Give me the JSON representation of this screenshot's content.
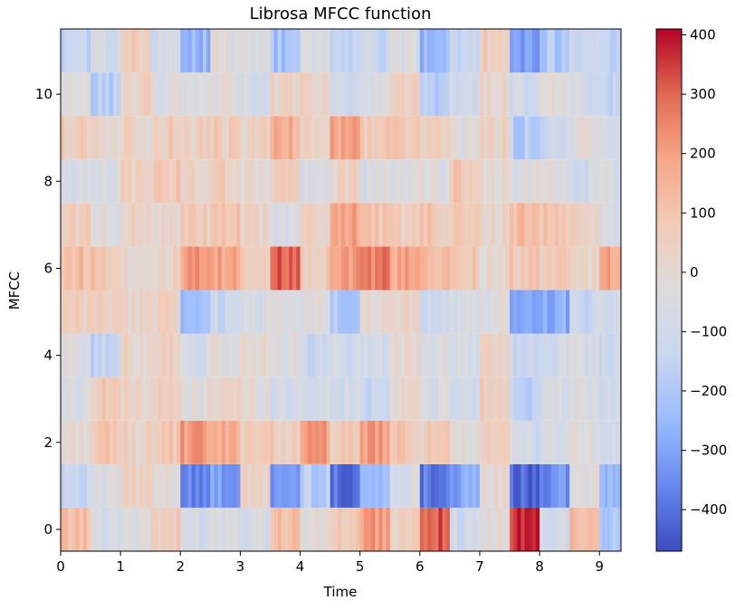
{
  "chart_data": {
    "type": "heatmap",
    "title": "Librosa MFCC function",
    "xlabel": "Time",
    "ylabel": "MFCC",
    "xlim": [
      0,
      9.36
    ],
    "ylim": [
      -0.5,
      11.5
    ],
    "x_ticks": [
      0,
      1,
      2,
      3,
      4,
      5,
      6,
      7,
      8,
      9
    ],
    "y_ticks": [
      0,
      2,
      4,
      6,
      8,
      10
    ],
    "colorbar": {
      "range": [
        -470,
        410
      ],
      "ticks": [
        400,
        300,
        200,
        100,
        0,
        -100,
        -200,
        -300,
        -400
      ],
      "tick_labels": [
        "400",
        "300",
        "200",
        "100",
        "0",
        "−100",
        "−200",
        "−300",
        "−400"
      ],
      "colormap": "coolwarm",
      "colormap_stops": [
        "#3b4cc0",
        "#6788ee",
        "#9abbff",
        "#c9d7f0",
        "#dddcdc",
        "#f2cbb7",
        "#f7a889",
        "#e26952",
        "#b40426"
      ]
    },
    "time_segments": [
      0,
      0.5,
      1.0,
      1.5,
      2.0,
      2.5,
      3.0,
      3.5,
      4.0,
      4.5,
      5.0,
      5.5,
      6.0,
      6.5,
      7.0,
      7.5,
      8.0,
      8.5,
      9.0,
      9.36
    ],
    "coefficients": [
      {
        "index": 0,
        "values": [
          120,
          -60,
          -40,
          60,
          -80,
          -40,
          -60,
          120,
          -30,
          80,
          200,
          40,
          320,
          -100,
          -20,
          360,
          -80,
          140,
          -200
        ]
      },
      {
        "index": 1,
        "values": [
          -120,
          -60,
          40,
          -20,
          -350,
          -320,
          20,
          -320,
          -180,
          -400,
          -250,
          -60,
          -380,
          -300,
          0,
          -420,
          -350,
          -30,
          -250
        ]
      },
      {
        "index": 2,
        "values": [
          0,
          80,
          40,
          80,
          200,
          160,
          80,
          60,
          200,
          60,
          200,
          80,
          60,
          -40,
          80,
          -100,
          -60,
          -40,
          -100
        ]
      },
      {
        "index": 3,
        "values": [
          -60,
          80,
          30,
          40,
          -30,
          40,
          -10,
          -80,
          -80,
          -100,
          -120,
          20,
          -60,
          -100,
          60,
          -150,
          -80,
          -60,
          -100
        ]
      },
      {
        "index": 4,
        "values": [
          -40,
          -150,
          30,
          60,
          -80,
          -30,
          0,
          -40,
          -120,
          -100,
          -80,
          20,
          -50,
          -60,
          30,
          -120,
          -80,
          -60,
          -100
        ]
      },
      {
        "index": 5,
        "values": [
          40,
          60,
          20,
          60,
          -250,
          -120,
          -60,
          -50,
          -40,
          -200,
          20,
          30,
          -100,
          -80,
          -40,
          -300,
          -280,
          -120,
          -80
        ]
      },
      {
        "index": 6,
        "values": [
          120,
          100,
          20,
          40,
          200,
          180,
          80,
          300,
          80,
          220,
          260,
          180,
          120,
          80,
          20,
          80,
          60,
          20,
          180
        ]
      },
      {
        "index": 7,
        "values": [
          60,
          -40,
          40,
          20,
          60,
          80,
          20,
          -60,
          40,
          200,
          100,
          60,
          80,
          60,
          20,
          120,
          100,
          40,
          -60
        ]
      },
      {
        "index": 8,
        "values": [
          -80,
          -40,
          40,
          80,
          30,
          60,
          0,
          60,
          -80,
          40,
          -60,
          -20,
          -40,
          80,
          0,
          -40,
          -40,
          -100,
          -60
        ]
      },
      {
        "index": 9,
        "values": [
          60,
          30,
          40,
          60,
          40,
          60,
          40,
          160,
          40,
          180,
          80,
          80,
          60,
          -40,
          40,
          -180,
          -120,
          -40,
          -100
        ]
      },
      {
        "index": 10,
        "values": [
          -60,
          -180,
          40,
          -40,
          -40,
          -30,
          -80,
          40,
          20,
          -120,
          -60,
          40,
          -200,
          -100,
          20,
          -100,
          -40,
          -80,
          -140
        ]
      },
      {
        "index": 11,
        "values": [
          -150,
          -80,
          60,
          -100,
          -250,
          -40,
          -60,
          -220,
          -60,
          -140,
          -120,
          -60,
          -260,
          -120,
          60,
          -300,
          -200,
          -100,
          -150
        ]
      }
    ]
  }
}
